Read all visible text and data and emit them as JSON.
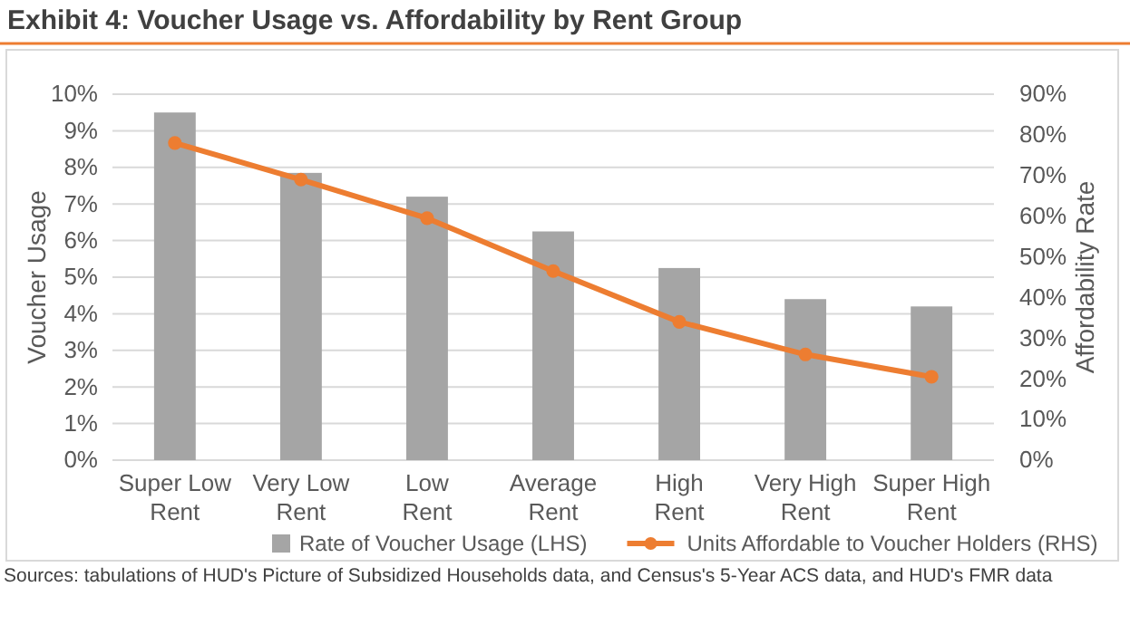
{
  "chart_data": {
    "type": "bar",
    "title": "Exhibit 4: Voucher Usage vs. Affordability by Rent Group",
    "ylabel": "Voucher Usage",
    "y2label": "Affordability Rate",
    "categories": [
      "Super Low Rent",
      "Very Low Rent",
      "Low Rent",
      "Average Rent",
      "High Rent",
      "Very High Rent",
      "Super High Rent"
    ],
    "series": [
      {
        "name": "Rate of Voucher Usage (LHS)",
        "color": "#a5a5a5",
        "values": [
          9.5,
          7.85,
          7.2,
          6.25,
          5.25,
          4.4,
          4.2
        ]
      },
      {
        "name": "Units Affordable to Voucher Holders (RHS)",
        "type": "line",
        "axis": "y2",
        "color": "#ed7d31",
        "values": [
          78,
          69,
          59.5,
          46.5,
          34,
          26,
          20.5
        ]
      }
    ],
    "ylim": [
      0,
      10
    ],
    "yticks": [
      {
        "value": 0,
        "label": "0%"
      },
      {
        "value": 1,
        "label": "1%"
      },
      {
        "value": 2,
        "label": "2%"
      },
      {
        "value": 3,
        "label": "3%"
      },
      {
        "value": 4,
        "label": "4%"
      },
      {
        "value": 5,
        "label": "5%"
      },
      {
        "value": 6,
        "label": "6%"
      },
      {
        "value": 7,
        "label": "7%"
      },
      {
        "value": 8,
        "label": "8%"
      },
      {
        "value": 9,
        "label": "9%"
      },
      {
        "value": 10,
        "label": "10%"
      }
    ],
    "y2lim": [
      0,
      90
    ],
    "y2ticks": [
      {
        "value": 0,
        "label": "0%"
      },
      {
        "value": 10,
        "label": "10%"
      },
      {
        "value": 20,
        "label": "20%"
      },
      {
        "value": 30,
        "label": "30%"
      },
      {
        "value": 40,
        "label": "40%"
      },
      {
        "value": 50,
        "label": "50%"
      },
      {
        "value": 60,
        "label": "60%"
      },
      {
        "value": 70,
        "label": "70%"
      },
      {
        "value": 80,
        "label": "80%"
      },
      {
        "value": 90,
        "label": "90%"
      }
    ],
    "grid": "y",
    "legend": "bottom",
    "marker": "circle",
    "line_style": "solid",
    "annotations": [
      "Sources: tabulations of HUD's Picture of Subsidized Households data, and Census's 5-Year ACS data, and HUD's FMR data"
    ]
  }
}
